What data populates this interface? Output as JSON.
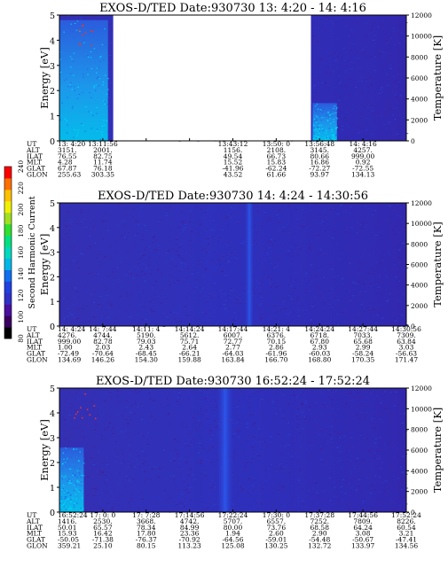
{
  "chart_data": [
    {
      "type": "heatmap",
      "title": "EXOS-D/TED   Date:930730  13: 4:20 - 14: 4:16",
      "ylabel": "Energy [eV]",
      "y2label": "Temperature [K]",
      "ylim": [
        0,
        5
      ],
      "y2lim": [
        0,
        12000
      ],
      "yticks": [
        "0",
        "1",
        "2",
        "3",
        "4",
        "5"
      ],
      "y2ticks": [
        "0",
        "2000",
        "4000",
        "6000",
        "8000",
        "10000",
        "12000"
      ],
      "data_gap": {
        "from": 0.155,
        "to": 0.725
      },
      "enhancements": [
        {
          "from": 0.0,
          "to": 0.14,
          "energy_max": 4.8,
          "level": "cyan"
        },
        {
          "from": 0.73,
          "to": 0.8,
          "energy_max": 1.5,
          "level": "cyan"
        }
      ],
      "orbit_labels": [
        "UT",
        "ALT",
        "ILAT",
        "MLT",
        "GLAT",
        "GLON"
      ],
      "orbit_columns": [
        {
          "col": 0,
          "values": [
            "13: 4:20",
            "3151.",
            "76.55",
            "4.28",
            "67.87",
            "255.63"
          ]
        },
        {
          "col": 1,
          "values": [
            "13:11:56",
            "2001.",
            "82.75",
            "11.74",
            "76.18",
            "303.35"
          ]
        },
        {
          "col": 4,
          "values": [
            "13:43:12",
            "1156.",
            "49.54",
            "15.52",
            "-41.96",
            "43.52"
          ]
        },
        {
          "col": 5,
          "values": [
            "13:50: 0",
            "2108.",
            "66.73",
            "15.83",
            "-62.24",
            "61.66"
          ]
        },
        {
          "col": 6,
          "values": [
            "13:56:48",
            "3145.",
            "80.66",
            "16.86",
            "-72.27",
            "93.97"
          ]
        },
        {
          "col": 7,
          "values": [
            "14: 4:16",
            "4257.",
            "999.00",
            "0.92",
            "-72.55",
            "134.13"
          ]
        }
      ]
    },
    {
      "type": "heatmap",
      "title": "EXOS-D/TED   Date:930730  14: 4:24 - 14:30:56",
      "ylabel": "Energy [eV]",
      "y2label": "Temperature [K]",
      "ylim": [
        0,
        5
      ],
      "y2lim": [
        0,
        12000
      ],
      "yticks": [
        "0",
        "1",
        "2",
        "3",
        "4",
        "5"
      ],
      "y2ticks": [
        "0",
        "2000",
        "4000",
        "6000",
        "8000",
        "10000",
        "12000"
      ],
      "enhancements": [
        {
          "from": 0.535,
          "to": 0.56,
          "energy_max": 5,
          "level": "blue"
        }
      ],
      "orbit_labels": [
        "UT",
        "ALT",
        "ILAT",
        "MLT",
        "GLAT",
        "GLON"
      ],
      "orbit_columns": [
        {
          "col": 0,
          "values": [
            "14: 4:24",
            "4276.",
            "999.00",
            "1.00",
            "-72.49",
            "134.69"
          ]
        },
        {
          "col": 1,
          "values": [
            "14: 7:44",
            "4744.",
            "82.78",
            "2.03",
            "-70.64",
            "146.26"
          ]
        },
        {
          "col": 2,
          "values": [
            "14:11: 4",
            "5190.",
            "79.03",
            "2.43",
            "-68.45",
            "154.30"
          ]
        },
        {
          "col": 3,
          "values": [
            "14:14:24",
            "5612.",
            "75.71",
            "2.64",
            "-66.21",
            "159.88"
          ]
        },
        {
          "col": 4,
          "values": [
            "14:17:44",
            "6007.",
            "72.77",
            "2.77",
            "-64.03",
            "163.84"
          ]
        },
        {
          "col": 5,
          "values": [
            "14:21: 4",
            "6376.",
            "70.15",
            "2.86",
            "-61.96",
            "166.70"
          ]
        },
        {
          "col": 6,
          "values": [
            "14:24:24",
            "6718.",
            "67.80",
            "2.93",
            "-60.03",
            "168.80"
          ]
        },
        {
          "col": 7,
          "values": [
            "14:27:44",
            "7033.",
            "65.68",
            "2.99",
            "-58.24",
            "170.35"
          ]
        },
        {
          "col": 8,
          "values": [
            "14:30:56",
            "7309.",
            "63.84",
            "3.03",
            "-56.63",
            "171.47"
          ]
        }
      ]
    },
    {
      "type": "heatmap",
      "title": "EXOS-D/TED   Date:930730  16:52:24 - 17:52:24",
      "ylabel": "Energy [eV]",
      "y2label": "Temperature [K]",
      "ylim": [
        0,
        5
      ],
      "y2lim": [
        0,
        12000
      ],
      "yticks": [
        "0",
        "1",
        "2",
        "3",
        "4",
        "5"
      ],
      "y2ticks": [
        "0",
        "2000",
        "4000",
        "6000",
        "8000",
        "10000",
        "12000"
      ],
      "enhancements": [
        {
          "from": 0.0,
          "to": 0.07,
          "energy_max": 2.6,
          "level": "cyan"
        },
        {
          "from": 0.455,
          "to": 0.5,
          "energy_max": 5,
          "level": "blue"
        }
      ],
      "orbit_labels": [
        "UT",
        "ALT",
        "ILAT",
        "MLT",
        "GLAT",
        "GLON"
      ],
      "orbit_columns": [
        {
          "col": 0,
          "values": [
            "16:52:24",
            "1416.",
            "50.01",
            "15.93",
            "-50.05",
            "359.21"
          ]
        },
        {
          "col": 1,
          "values": [
            "17: 0: 0",
            "2530.",
            "65.57",
            "16.42",
            "-71.38",
            "25.10"
          ]
        },
        {
          "col": 2,
          "values": [
            "17: 7:28",
            "3668.",
            "78.34",
            "17.80",
            "-76.37",
            "80.15"
          ]
        },
        {
          "col": 3,
          "values": [
            "17:14:56",
            "4742.",
            "84.99",
            "23.36",
            "-70.92",
            "113.23"
          ]
        },
        {
          "col": 4,
          "values": [
            "17:22:24",
            "5707.",
            "80.00",
            "1.94",
            "-64.56",
            "125.08"
          ]
        },
        {
          "col": 5,
          "values": [
            "17:30: 0",
            "6557.",
            "73.76",
            "2.60",
            "-59.01",
            "130.25"
          ]
        },
        {
          "col": 6,
          "values": [
            "17:37:28",
            "7252.",
            "68.58",
            "2.90",
            "-54.48",
            "132.72"
          ]
        },
        {
          "col": 7,
          "values": [
            "17:44:56",
            "7809.",
            "64.24",
            "3.08",
            "-50.67",
            "133.97"
          ]
        },
        {
          "col": 8,
          "values": [
            "17:52:24",
            "8226.",
            "60.54",
            "3.21",
            "-47.41",
            "134.56"
          ]
        }
      ]
    }
  ],
  "colorbar": {
    "label": "Second Harmonic Current",
    "ticks": [
      "80",
      "100",
      "120",
      "140",
      "160",
      "180",
      "200",
      "220",
      "240"
    ],
    "colors": [
      "#000000",
      "#3a0060",
      "#4a10a0",
      "#3030c8",
      "#2040e0",
      "#1070f0",
      "#00b8e8",
      "#00d8c0",
      "#00e080",
      "#30e030",
      "#a0e020",
      "#f0f000",
      "#ffc000",
      "#ff7000",
      "#ff0000"
    ]
  }
}
